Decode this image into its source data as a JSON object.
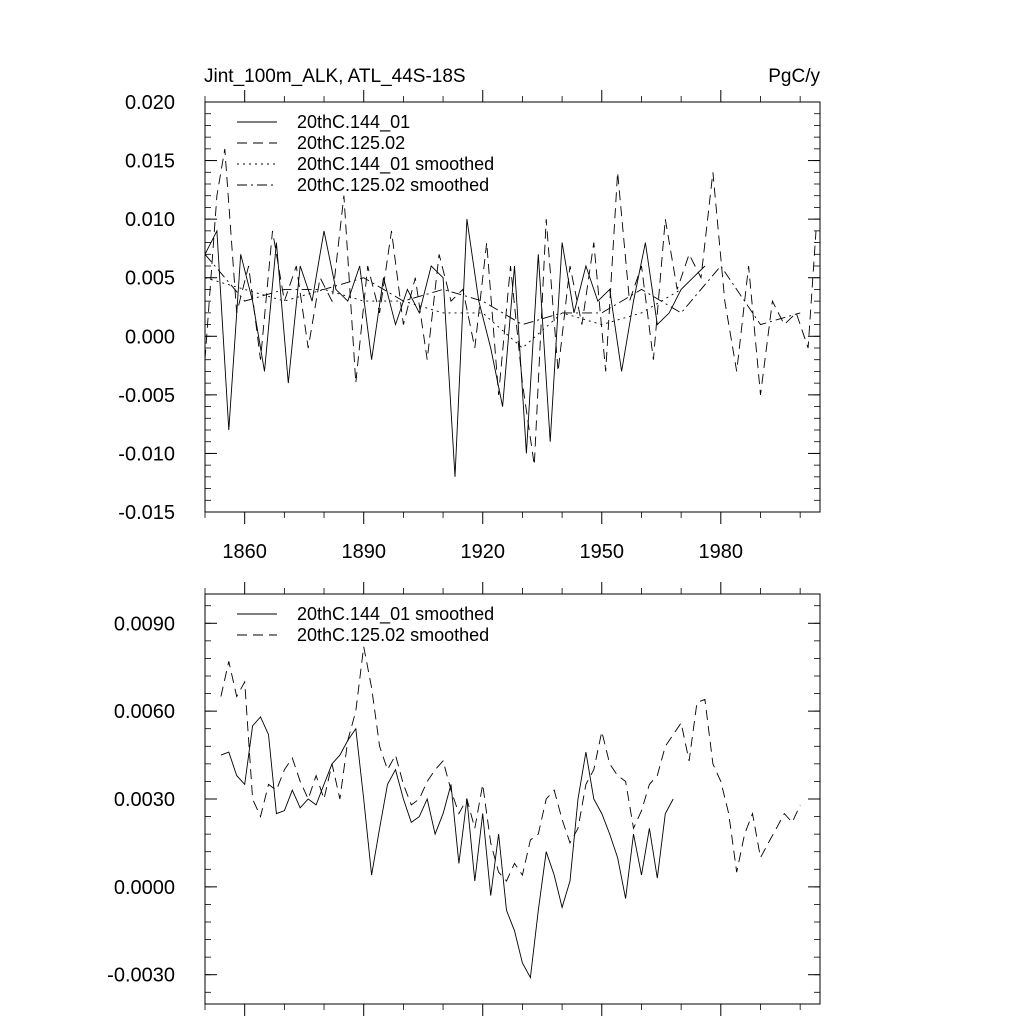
{
  "chart_data": [
    {
      "type": "line",
      "title": "Jint_100m_ALK, ATL_44S-18S",
      "units": "PgC/y",
      "xlim": [
        1850,
        2005
      ],
      "ylim": [
        -0.015,
        0.02
      ],
      "xticks": [
        1860,
        1890,
        1920,
        1950,
        1980
      ],
      "xtick_labels": [
        "1860",
        "1890",
        "1920",
        "1950",
        "1980"
      ],
      "yticks": [
        -0.015,
        -0.01,
        -0.005,
        0.0,
        0.005,
        0.01,
        0.015,
        0.02
      ],
      "ytick_labels": [
        "-0.015",
        "-0.010",
        "-0.005",
        "0.000",
        "0.005",
        "0.010",
        "0.015",
        "0.020"
      ],
      "legend_position": "top-left",
      "series": [
        {
          "name": "20thC.144_01",
          "style": "solid",
          "x": [
            1850,
            1853,
            1856,
            1859,
            1862,
            1865,
            1868,
            1871,
            1874,
            1877,
            1880,
            1883,
            1886,
            1889,
            1892,
            1895,
            1898,
            1901,
            1904,
            1907,
            1910,
            1913,
            1916,
            1919,
            1922,
            1925,
            1928,
            1931,
            1934,
            1937,
            1940,
            1943,
            1946,
            1949,
            1952,
            1955,
            1958,
            1961,
            1964,
            1967,
            1970,
            1973,
            1976
          ],
          "values": [
            0.007,
            0.009,
            -0.008,
            0.007,
            0.003,
            -0.003,
            0.008,
            -0.004,
            0.006,
            0.003,
            0.009,
            0.004,
            0.003,
            0.006,
            -0.002,
            0.005,
            0.001,
            0.004,
            0.002,
            0.006,
            0.005,
            -0.012,
            0.01,
            0.003,
            -0.001,
            -0.006,
            0.006,
            -0.01,
            0.007,
            -0.009,
            0.008,
            0.002,
            0.006,
            0.003,
            0.004,
            -0.003,
            0.003,
            0.008,
            0.001,
            0.002,
            0.004,
            0.005,
            0.006
          ]
        },
        {
          "name": "20thC.125.02",
          "style": "dashed",
          "x": [
            1850,
            1853,
            1855,
            1858,
            1861,
            1864,
            1867,
            1870,
            1873,
            1876,
            1879,
            1882,
            1885,
            1888,
            1891,
            1894,
            1897,
            1900,
            1903,
            1906,
            1909,
            1912,
            1915,
            1918,
            1921,
            1924,
            1927,
            1930,
            1933,
            1936,
            1939,
            1942,
            1945,
            1948,
            1951,
            1954,
            1957,
            1960,
            1963,
            1966,
            1969,
            1972,
            1975,
            1978,
            1981,
            1984,
            1987,
            1990,
            1993,
            1996,
            1999,
            2002,
            2004
          ],
          "values": [
            -0.002,
            0.012,
            0.016,
            0.002,
            0.006,
            -0.002,
            0.009,
            0.003,
            0.006,
            -0.001,
            0.005,
            0.003,
            0.012,
            -0.004,
            0.006,
            0.002,
            0.009,
            0.001,
            0.005,
            -0.002,
            0.007,
            0.003,
            0.004,
            -0.001,
            0.008,
            -0.005,
            0.006,
            -0.004,
            -0.011,
            0.01,
            -0.003,
            0.006,
            0.001,
            0.008,
            -0.003,
            0.014,
            0.003,
            0.006,
            -0.002,
            0.01,
            0.004,
            0.007,
            0.005,
            0.014,
            0.003,
            -0.003,
            0.006,
            -0.005,
            0.003,
            0.001,
            0.002,
            -0.001,
            0.009
          ]
        },
        {
          "name": "20thC.144_01 smoothed",
          "style": "dotted",
          "x": [
            1850,
            1860,
            1870,
            1880,
            1890,
            1900,
            1910,
            1920,
            1930,
            1940,
            1950,
            1960,
            1970
          ],
          "values": [
            0.005,
            0.004,
            0.003,
            0.004,
            0.003,
            0.003,
            0.002,
            0.002,
            -0.001,
            0.002,
            0.001,
            0.002,
            0.004
          ]
        },
        {
          "name": "20thC.125.02 smoothed",
          "style": "dashdot",
          "x": [
            1850,
            1860,
            1870,
            1880,
            1890,
            1900,
            1910,
            1920,
            1930,
            1940,
            1950,
            1960,
            1970,
            1980,
            1990,
            2000
          ],
          "values": [
            0.007,
            0.003,
            0.004,
            0.004,
            0.005,
            0.003,
            0.004,
            0.003,
            0.001,
            0.002,
            0.002,
            0.004,
            0.002,
            0.006,
            0.001,
            0.002
          ]
        }
      ]
    },
    {
      "type": "line",
      "title": "",
      "xlim": [
        1850,
        2005
      ],
      "ylim": [
        -0.004,
        0.01
      ],
      "xticks": [
        1860,
        1890,
        1920,
        1950,
        1980
      ],
      "yticks": [
        -0.003,
        0.0,
        0.003,
        0.006,
        0.009
      ],
      "ytick_labels": [
        "-0.0030",
        "0.0000",
        "0.0030",
        "0.0060",
        "0.0090"
      ],
      "legend_position": "top-left",
      "series": [
        {
          "name": "20thC.144_01 smoothed",
          "style": "solid",
          "x": [
            1854,
            1856,
            1858,
            1860,
            1862,
            1864,
            1866,
            1868,
            1870,
            1872,
            1874,
            1876,
            1878,
            1880,
            1882,
            1884,
            1886,
            1888,
            1890,
            1892,
            1894,
            1896,
            1898,
            1900,
            1902,
            1904,
            1906,
            1908,
            1910,
            1912,
            1914,
            1916,
            1918,
            1920,
            1922,
            1924,
            1926,
            1928,
            1930,
            1932,
            1934,
            1936,
            1938,
            1940,
            1942,
            1944,
            1946,
            1948,
            1950,
            1952,
            1954,
            1956,
            1958,
            1960,
            1962,
            1964,
            1966,
            1968
          ],
          "values": [
            0.0045,
            0.0046,
            0.0038,
            0.0035,
            0.0055,
            0.0058,
            0.0052,
            0.0025,
            0.0026,
            0.0033,
            0.0027,
            0.003,
            0.0028,
            0.0035,
            0.0042,
            0.0045,
            0.005,
            0.0054,
            0.003,
            0.0004,
            0.002,
            0.0035,
            0.004,
            0.003,
            0.0022,
            0.0024,
            0.003,
            0.0018,
            0.0025,
            0.0035,
            0.0008,
            0.003,
            0.0002,
            0.0025,
            -0.0003,
            0.0018,
            -0.0008,
            -0.0015,
            -0.0026,
            -0.0031,
            -0.0008,
            0.0012,
            0.0004,
            -0.0007,
            0.0002,
            0.003,
            0.0046,
            0.003,
            0.0025,
            0.0018,
            0.001,
            -0.0004,
            0.0018,
            0.0004,
            0.002,
            0.0003,
            0.0025,
            0.003
          ]
        },
        {
          "name": "20thC.125.02 smoothed",
          "style": "dashed",
          "x": [
            1854,
            1856,
            1858,
            1860,
            1862,
            1864,
            1866,
            1868,
            1870,
            1872,
            1874,
            1876,
            1878,
            1880,
            1882,
            1884,
            1886,
            1888,
            1890,
            1892,
            1894,
            1896,
            1898,
            1900,
            1902,
            1904,
            1906,
            1908,
            1910,
            1912,
            1914,
            1916,
            1918,
            1920,
            1922,
            1924,
            1926,
            1928,
            1930,
            1932,
            1934,
            1936,
            1938,
            1940,
            1942,
            1944,
            1946,
            1948,
            1950,
            1952,
            1954,
            1956,
            1958,
            1960,
            1962,
            1964,
            1966,
            1968,
            1970,
            1972,
            1974,
            1976,
            1978,
            1980,
            1982,
            1984,
            1986,
            1988,
            1990,
            1992,
            1994,
            1996,
            1998,
            2000
          ],
          "values": [
            0.0065,
            0.0077,
            0.0065,
            0.007,
            0.003,
            0.0024,
            0.0035,
            0.0033,
            0.004,
            0.0044,
            0.0036,
            0.003,
            0.0038,
            0.003,
            0.0042,
            0.003,
            0.005,
            0.006,
            0.0082,
            0.0068,
            0.0048,
            0.004,
            0.0045,
            0.0035,
            0.0028,
            0.003,
            0.0036,
            0.004,
            0.0043,
            0.0033,
            0.0025,
            0.003,
            0.002,
            0.0035,
            0.0015,
            0.0005,
            0.0002,
            0.0008,
            0.0004,
            0.0016,
            0.0018,
            0.003,
            0.0033,
            0.0023,
            0.0015,
            0.002,
            0.0035,
            0.004,
            0.0053,
            0.0042,
            0.0038,
            0.0036,
            0.002,
            0.0026,
            0.0035,
            0.0038,
            0.0048,
            0.0052,
            0.0056,
            0.0043,
            0.0063,
            0.0064,
            0.0042,
            0.0036,
            0.0025,
            0.0005,
            0.0018,
            0.0025,
            0.001,
            0.0015,
            0.002,
            0.0025,
            0.0022,
            0.0028
          ]
        }
      ]
    }
  ]
}
